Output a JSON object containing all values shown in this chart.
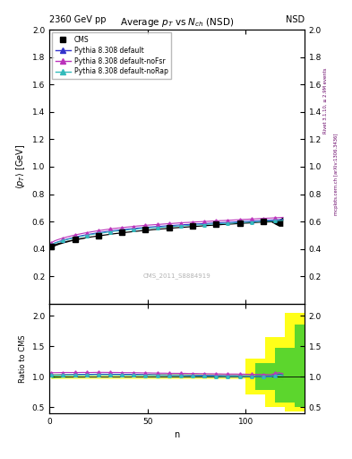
{
  "title_main": "Average $p_T$ vs $N_{ch}$ (NSD)",
  "header_left": "2360 GeV pp",
  "header_right": "NSD",
  "side_text_right": "mcplots.cern.ch [arXiv:1306.3436]",
  "side_text_rivet": "Rivet 3.1.10, ≥ 2.9M events",
  "watermark": "CMS_2011_S8884919",
  "xlabel": "n",
  "ylabel_main": "$\\langle p_T \\rangle$ [GeV]",
  "ylabel_ratio": "Ratio to CMS",
  "ylim_main": [
    0.0,
    2.0
  ],
  "ylim_ratio": [
    0.4,
    2.2
  ],
  "ratio_yticks": [
    0.5,
    1.0,
    1.5,
    2.0
  ],
  "main_yticks": [
    0.2,
    0.4,
    0.6,
    0.8,
    1.0,
    1.2,
    1.4,
    1.6,
    1.8,
    2.0
  ],
  "xticks": [
    0,
    50,
    100
  ],
  "xlim": [
    0,
    130
  ],
  "pythia_default_color": "#3333cc",
  "pythia_nofsr_color": "#bb33bb",
  "pythia_norap_color": "#33bbbb",
  "band_yellow": "#ffff00",
  "band_green": "#33cc33",
  "cms_x": [
    1,
    3,
    5,
    7,
    9,
    11,
    13,
    15,
    17,
    19,
    21,
    23,
    25,
    27,
    29,
    31,
    33,
    35,
    37,
    39,
    41,
    43,
    45,
    47,
    49,
    51,
    53,
    55,
    57,
    59,
    61,
    63,
    65,
    67,
    69,
    71,
    73,
    75,
    77,
    79,
    81,
    83,
    85,
    87,
    89,
    91,
    93,
    95,
    97,
    99,
    101,
    103,
    105,
    107,
    109,
    111,
    113,
    115,
    117,
    119
  ],
  "cms_y": [
    0.418,
    0.432,
    0.441,
    0.449,
    0.456,
    0.463,
    0.469,
    0.475,
    0.48,
    0.485,
    0.49,
    0.494,
    0.498,
    0.502,
    0.506,
    0.51,
    0.514,
    0.517,
    0.521,
    0.524,
    0.527,
    0.53,
    0.533,
    0.536,
    0.539,
    0.541,
    0.544,
    0.546,
    0.549,
    0.551,
    0.554,
    0.556,
    0.558,
    0.56,
    0.562,
    0.564,
    0.566,
    0.568,
    0.57,
    0.572,
    0.574,
    0.576,
    0.578,
    0.58,
    0.582,
    0.584,
    0.585,
    0.587,
    0.589,
    0.591,
    0.593,
    0.595,
    0.597,
    0.599,
    0.601,
    0.603,
    0.605,
    0.595,
    0.59,
    0.6
  ],
  "cms_yerr": [
    0.01,
    0.008,
    0.007,
    0.006,
    0.006,
    0.005,
    0.005,
    0.005,
    0.005,
    0.004,
    0.004,
    0.004,
    0.004,
    0.004,
    0.004,
    0.004,
    0.004,
    0.004,
    0.004,
    0.004,
    0.004,
    0.004,
    0.004,
    0.004,
    0.004,
    0.004,
    0.004,
    0.004,
    0.004,
    0.004,
    0.004,
    0.004,
    0.004,
    0.004,
    0.004,
    0.004,
    0.004,
    0.004,
    0.004,
    0.004,
    0.004,
    0.004,
    0.004,
    0.004,
    0.004,
    0.004,
    0.004,
    0.004,
    0.004,
    0.004,
    0.005,
    0.005,
    0.005,
    0.005,
    0.006,
    0.007,
    0.008,
    0.015,
    0.025,
    0.035
  ],
  "py_x": [
    1,
    3,
    5,
    7,
    9,
    11,
    13,
    15,
    17,
    19,
    21,
    23,
    25,
    27,
    29,
    31,
    33,
    35,
    37,
    39,
    41,
    43,
    45,
    47,
    49,
    51,
    53,
    55,
    57,
    59,
    61,
    63,
    65,
    67,
    69,
    71,
    73,
    75,
    77,
    79,
    81,
    83,
    85,
    87,
    89,
    91,
    93,
    95,
    97,
    99,
    101,
    103,
    105,
    107,
    109,
    111,
    113,
    115,
    117,
    119
  ],
  "py_def_y": [
    0.43,
    0.444,
    0.454,
    0.463,
    0.471,
    0.478,
    0.485,
    0.492,
    0.498,
    0.503,
    0.508,
    0.513,
    0.518,
    0.522,
    0.526,
    0.53,
    0.534,
    0.537,
    0.54,
    0.543,
    0.546,
    0.549,
    0.552,
    0.554,
    0.557,
    0.559,
    0.561,
    0.563,
    0.565,
    0.567,
    0.569,
    0.571,
    0.573,
    0.575,
    0.577,
    0.578,
    0.58,
    0.582,
    0.583,
    0.585,
    0.586,
    0.588,
    0.589,
    0.591,
    0.592,
    0.594,
    0.595,
    0.597,
    0.598,
    0.6,
    0.601,
    0.603,
    0.604,
    0.606,
    0.607,
    0.609,
    0.61,
    0.612,
    0.613,
    0.615
  ],
  "py_nofsr_y": [
    0.445,
    0.46,
    0.47,
    0.479,
    0.487,
    0.494,
    0.501,
    0.507,
    0.513,
    0.518,
    0.523,
    0.528,
    0.533,
    0.537,
    0.541,
    0.545,
    0.549,
    0.552,
    0.555,
    0.558,
    0.561,
    0.564,
    0.567,
    0.569,
    0.572,
    0.574,
    0.576,
    0.578,
    0.58,
    0.582,
    0.584,
    0.586,
    0.588,
    0.59,
    0.592,
    0.593,
    0.595,
    0.597,
    0.598,
    0.6,
    0.601,
    0.603,
    0.604,
    0.606,
    0.607,
    0.609,
    0.61,
    0.612,
    0.613,
    0.615,
    0.616,
    0.618,
    0.619,
    0.621,
    0.622,
    0.624,
    0.625,
    0.627,
    0.628,
    0.63
  ],
  "py_norap_y": [
    0.428,
    0.442,
    0.451,
    0.46,
    0.467,
    0.474,
    0.481,
    0.487,
    0.493,
    0.498,
    0.503,
    0.508,
    0.512,
    0.516,
    0.52,
    0.524,
    0.528,
    0.531,
    0.534,
    0.537,
    0.54,
    0.543,
    0.545,
    0.548,
    0.55,
    0.552,
    0.554,
    0.556,
    0.558,
    0.56,
    0.562,
    0.564,
    0.566,
    0.568,
    0.569,
    0.571,
    0.573,
    0.574,
    0.576,
    0.577,
    0.579,
    0.581,
    0.582,
    0.584,
    0.585,
    0.587,
    0.588,
    0.59,
    0.591,
    0.593,
    0.594,
    0.596,
    0.597,
    0.599,
    0.6,
    0.602,
    0.603,
    0.605,
    0.606,
    0.608
  ]
}
